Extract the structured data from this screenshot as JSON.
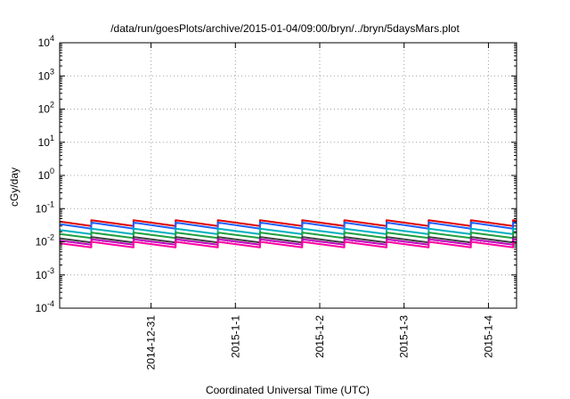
{
  "chart_data": {
    "type": "line",
    "title": "/data/run/goesPlots/archive/2015-01-04/09:00/bryn/../bryn/5daysMars.plot",
    "xlabel": "Coordinated Universal Time (UTC)",
    "ylabel": "cGy/day",
    "yscale": "log",
    "ylim": [
      0.0001,
      10000
    ],
    "xlim": [
      "2014-12-29T22:00",
      "2015-01-04T08:00"
    ],
    "y_ticks": [
      {
        "base": "10",
        "exp": "-4"
      },
      {
        "base": "10",
        "exp": "-3"
      },
      {
        "base": "10",
        "exp": "-2"
      },
      {
        "base": "10",
        "exp": "-1"
      },
      {
        "base": "10",
        "exp": "0"
      },
      {
        "base": "10",
        "exp": "1"
      },
      {
        "base": "10",
        "exp": "2"
      },
      {
        "base": "10",
        "exp": "3"
      },
      {
        "base": "10",
        "exp": "4"
      }
    ],
    "x_ticks": [
      {
        "label": "2014-12-31",
        "x": "2014-12-31T00:00"
      },
      {
        "label": "2015-1-1",
        "x": "2015-01-01T00:00"
      },
      {
        "label": "2015-1-2",
        "x": "2015-01-02T00:00"
      },
      {
        "label": "2015-1-3",
        "x": "2015-01-03T00:00"
      },
      {
        "label": "2015-1-4",
        "x": "2015-01-04T00:00"
      }
    ],
    "grid": true,
    "legend": "none",
    "series": [
      {
        "color": "#e00000",
        "peak": 0.045,
        "trough": 0.03
      },
      {
        "color": "#2060ff",
        "peak": 0.038,
        "trough": 0.025
      },
      {
        "color": "#00b0c0",
        "peak": 0.025,
        "trough": 0.017
      },
      {
        "color": "#20a040",
        "peak": 0.019,
        "trough": 0.013
      },
      {
        "color": "#404040",
        "peak": 0.014,
        "trough": 0.0095
      },
      {
        "color": "#c000c0",
        "peak": 0.012,
        "trough": 0.0082
      },
      {
        "color": "#ff00a0",
        "peak": 0.01,
        "trough": 0.0068
      }
    ]
  }
}
